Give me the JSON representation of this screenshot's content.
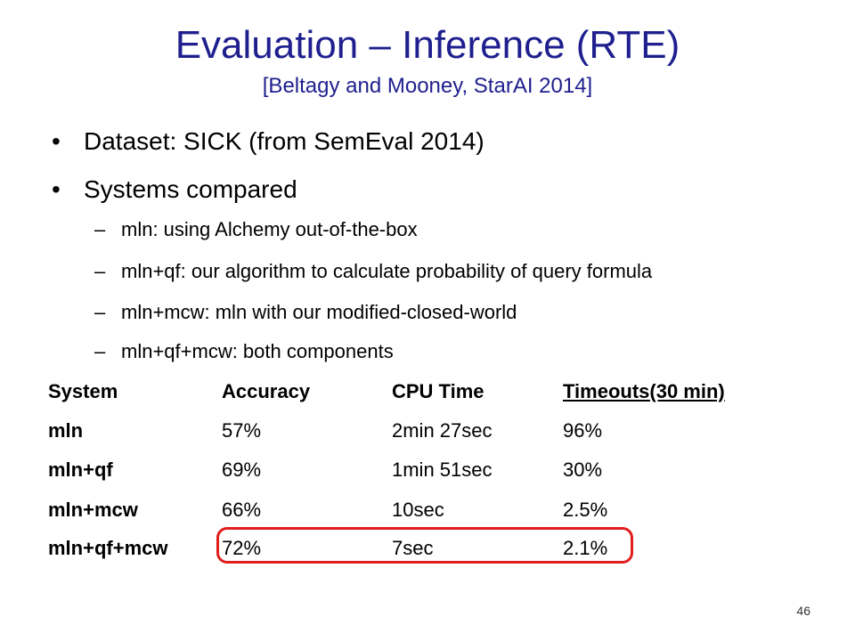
{
  "slide": {
    "title": "Evaluation – Inference (RTE)",
    "subtitle": "[Beltagy and Mooney, StarAI 2014]",
    "page_number": "46"
  },
  "bullets": [
    {
      "text": "Dataset: SICK (from SemEval 2014)",
      "subitems": []
    },
    {
      "text": "Systems compared",
      "subitems": [
        "mln: using Alchemy out-of-the-box",
        "mln+qf: our algorithm to calculate probability of query formula",
        "mln+mcw: mln with our modified-closed-world",
        "mln+qf+mcw: both components"
      ]
    }
  ],
  "table": {
    "headers": [
      "System",
      "Accuracy",
      "CPU Time",
      "Timeouts(30 min)"
    ],
    "rows": [
      [
        "mln",
        "57%",
        "2min 27sec",
        "96%"
      ],
      [
        "mln+qf",
        "69%",
        "1min 51sec",
        "30%"
      ],
      [
        "mln+mcw",
        "66%",
        "10sec",
        "2.5%"
      ],
      [
        "mln+qf+mcw",
        "72%",
        "7sec",
        "2.1%"
      ]
    ],
    "highlighted_row_index": 3
  },
  "colors": {
    "title": "#1f1f8f",
    "highlight_border": "#e01e1e",
    "text": "#000000"
  }
}
